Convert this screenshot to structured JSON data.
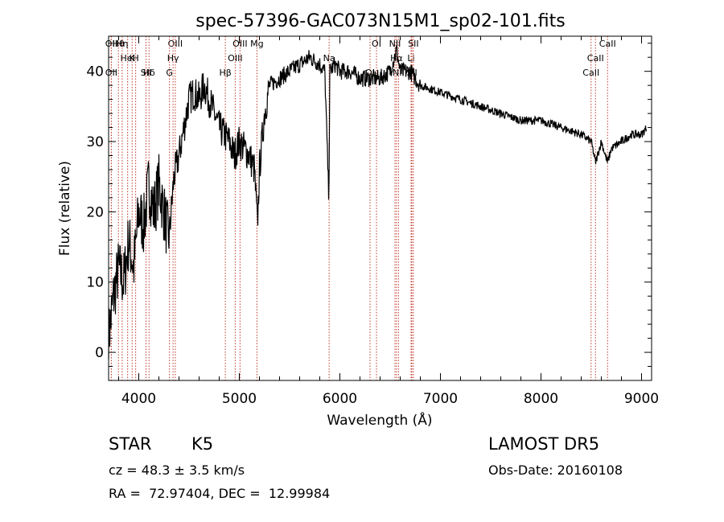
{
  "chart_data": {
    "type": "line",
    "title": "spec-57396-GAC073N15M1_sp02-101.fits",
    "xlabel": "Wavelength (Å)",
    "ylabel": "Flux (relative)",
    "xlim": [
      3700,
      9100
    ],
    "ylim": [
      -4,
      45
    ],
    "x_ticks": [
      4000,
      5000,
      6000,
      7000,
      8000,
      9000
    ],
    "x_tick_labels": [
      "4000",
      "5000",
      "6000",
      "7000",
      "8000",
      "9000"
    ],
    "y_ticks": [
      0,
      10,
      20,
      30,
      40
    ],
    "y_tick_labels": [
      "0",
      "10",
      "20",
      "30",
      "40"
    ],
    "grid": false,
    "line_color": "#000000",
    "marker_color": "#c0392b",
    "series": [
      {
        "x": [
          3700,
          3750,
          3800,
          3850,
          3900,
          3950,
          4000,
          4050,
          4100,
          4150,
          4200,
          4250,
          4300,
          4350,
          4400,
          4450,
          4500,
          4550,
          4600,
          4650,
          4700,
          4750,
          4800,
          4850,
          4900,
          4950,
          5000,
          5050,
          5100,
          5150,
          5180,
          5200,
          5250,
          5300,
          5400,
          5500,
          5600,
          5700,
          5800,
          5850,
          5890,
          5895,
          5900,
          5950,
          6000,
          6100,
          6200,
          6300,
          6400,
          6500,
          6563,
          6600,
          6700,
          6800,
          7000,
          7200,
          7400,
          7600,
          7800,
          8000,
          8200,
          8400,
          8500,
          8542,
          8600,
          8662,
          8700,
          8800,
          8900,
          9000,
          9050
        ],
        "y": [
          2,
          8,
          12,
          10,
          16,
          12,
          20,
          18,
          24,
          20,
          24,
          20,
          16,
          25,
          28,
          32,
          36,
          37,
          36,
          38,
          36,
          34,
          32,
          31,
          30,
          28,
          30,
          29,
          28,
          26,
          18,
          26,
          34,
          38,
          39,
          40,
          41,
          42,
          41,
          40,
          22,
          30,
          40,
          41,
          40,
          40,
          39,
          39,
          39,
          40,
          43,
          40,
          40,
          38,
          37,
          36,
          35,
          34,
          33,
          33,
          32,
          31,
          30,
          27,
          30,
          27,
          29,
          30,
          31,
          31,
          32
        ]
      }
    ],
    "line_markers": [
      {
        "label": "Hθ",
        "wavelength": 3798
      },
      {
        "label": "K",
        "wavelength": 3934
      },
      {
        "label": "Hδ",
        "wavelength": 4102
      },
      {
        "label": "OII",
        "wavelength": 3727
      },
      {
        "label": "HeI",
        "wavelength": 3889
      },
      {
        "label": "SII",
        "wavelength": 4072
      },
      {
        "label": "OIII",
        "wavelength": 4363
      },
      {
        "label": "Hγ",
        "wavelength": 4341
      },
      {
        "label": "OII",
        "wavelength": 3727
      },
      {
        "label": "Hη",
        "wavelength": 3835
      },
      {
        "label": "H",
        "wavelength": 3969
      },
      {
        "label": "G",
        "wavelength": 4305
      },
      {
        "label": "OIII",
        "wavelength": 5007
      },
      {
        "label": "OIII",
        "wavelength": 4959
      },
      {
        "label": "Hβ",
        "wavelength": 4861
      },
      {
        "label": "Mg",
        "wavelength": 5175
      },
      {
        "label": "Na",
        "wavelength": 5893
      },
      {
        "label": "OI",
        "wavelength": 6300
      },
      {
        "label": "OI",
        "wavelength": 6364
      },
      {
        "label": "Hα",
        "wavelength": 6563
      },
      {
        "label": "SII",
        "wavelength": 6716
      },
      {
        "label": "NII",
        "wavelength": 6548
      },
      {
        "label": "Li",
        "wavelength": 6708
      },
      {
        "label": "NII",
        "wavelength": 6583
      },
      {
        "label": "SII",
        "wavelength": 6731
      },
      {
        "label": "CaII",
        "wavelength": 8542
      },
      {
        "label": "CaII",
        "wavelength": 8498
      },
      {
        "label": "CaII",
        "wavelength": 8662
      }
    ]
  },
  "info": {
    "object_class": "STAR",
    "subclass": "K5",
    "survey": "LAMOST DR5",
    "velocity": "cz = 48.3 ± 3.5 km/s",
    "obs_date": "Obs-Date: 20160108",
    "coordinates": "RA =  72.97404, DEC =  12.99984"
  }
}
